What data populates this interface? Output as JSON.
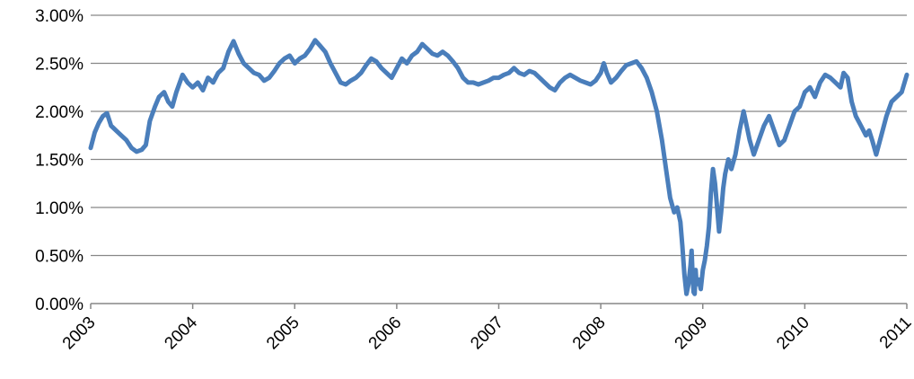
{
  "chart_data": {
    "type": "line",
    "title": "",
    "xlabel": "",
    "ylabel": "",
    "xlim": [
      2003,
      2011
    ],
    "ylim": [
      0,
      3
    ],
    "grid": true,
    "legend": "none",
    "y_ticks": [
      {
        "value": 0.0,
        "label": "0.00%"
      },
      {
        "value": 0.5,
        "label": "0.50%"
      },
      {
        "value": 1.0,
        "label": "1.00%"
      },
      {
        "value": 1.5,
        "label": "1.50%"
      },
      {
        "value": 2.0,
        "label": "2.00%"
      },
      {
        "value": 2.5,
        "label": "2.50%"
      },
      {
        "value": 3.0,
        "label": "3.00%"
      }
    ],
    "x_ticks": [
      {
        "value": 2003,
        "label": "2003"
      },
      {
        "value": 2004,
        "label": "2004"
      },
      {
        "value": 2005,
        "label": "2005"
      },
      {
        "value": 2006,
        "label": "2006"
      },
      {
        "value": 2007,
        "label": "2007"
      },
      {
        "value": 2008,
        "label": "2008"
      },
      {
        "value": 2009,
        "label": "2009"
      },
      {
        "value": 2010,
        "label": "2010"
      },
      {
        "value": 2011,
        "label": "2011"
      }
    ],
    "series": [
      {
        "color": "#4a7ebb",
        "x": [
          2003.0,
          2003.04,
          2003.08,
          2003.12,
          2003.16,
          2003.2,
          2003.25,
          2003.3,
          2003.35,
          2003.4,
          2003.45,
          2003.5,
          2003.54,
          2003.58,
          2003.63,
          2003.67,
          2003.72,
          2003.76,
          2003.8,
          2003.84,
          2003.9,
          2003.95,
          2004.0,
          2004.05,
          2004.1,
          2004.15,
          2004.2,
          2004.25,
          2004.3,
          2004.35,
          2004.4,
          2004.45,
          2004.5,
          2004.55,
          2004.6,
          2004.65,
          2004.7,
          2004.75,
          2004.8,
          2004.85,
          2004.9,
          2004.95,
          2005.0,
          2005.05,
          2005.1,
          2005.15,
          2005.2,
          2005.25,
          2005.3,
          2005.35,
          2005.4,
          2005.45,
          2005.5,
          2005.55,
          2005.6,
          2005.65,
          2005.7,
          2005.75,
          2005.8,
          2005.85,
          2005.9,
          2005.95,
          2006.0,
          2006.05,
          2006.1,
          2006.15,
          2006.2,
          2006.25,
          2006.3,
          2006.35,
          2006.4,
          2006.45,
          2006.5,
          2006.55,
          2006.6,
          2006.65,
          2006.7,
          2006.75,
          2006.8,
          2006.85,
          2006.9,
          2006.95,
          2007.0,
          2007.05,
          2007.1,
          2007.15,
          2007.2,
          2007.25,
          2007.3,
          2007.35,
          2007.4,
          2007.45,
          2007.5,
          2007.55,
          2007.6,
          2007.65,
          2007.7,
          2007.75,
          2007.8,
          2007.85,
          2007.9,
          2007.95,
          2008.0,
          2008.03,
          2008.06,
          2008.1,
          2008.15,
          2008.2,
          2008.25,
          2008.3,
          2008.35,
          2008.4,
          2008.45,
          2008.5,
          2008.55,
          2008.6,
          2008.64,
          2008.68,
          2008.72,
          2008.75,
          2008.78,
          2008.8,
          2008.82,
          2008.84,
          2008.86,
          2008.88,
          2008.89,
          2008.9,
          2008.91,
          2008.92,
          2008.93,
          2008.94,
          2008.96,
          2008.98,
          2009.0,
          2009.02,
          2009.04,
          2009.06,
          2009.08,
          2009.1,
          2009.12,
          2009.14,
          2009.16,
          2009.18,
          2009.2,
          2009.22,
          2009.25,
          2009.28,
          2009.32,
          2009.36,
          2009.4,
          2009.43,
          2009.46,
          2009.5,
          2009.55,
          2009.6,
          2009.65,
          2009.7,
          2009.75,
          2009.8,
          2009.85,
          2009.9,
          2009.95,
          2010.0,
          2010.05,
          2010.1,
          2010.15,
          2010.2,
          2010.25,
          2010.3,
          2010.35,
          2010.38,
          2010.42,
          2010.46,
          2010.5,
          2010.55,
          2010.6,
          2010.63,
          2010.66,
          2010.7,
          2010.75,
          2010.8,
          2010.85,
          2010.9,
          2010.95,
          2011.0
        ],
        "y": [
          1.62,
          1.78,
          1.88,
          1.95,
          1.98,
          1.85,
          1.8,
          1.75,
          1.7,
          1.62,
          1.58,
          1.6,
          1.65,
          1.9,
          2.05,
          2.15,
          2.2,
          2.1,
          2.05,
          2.2,
          2.38,
          2.3,
          2.25,
          2.3,
          2.22,
          2.35,
          2.3,
          2.4,
          2.45,
          2.62,
          2.73,
          2.6,
          2.5,
          2.45,
          2.4,
          2.38,
          2.32,
          2.35,
          2.42,
          2.5,
          2.55,
          2.58,
          2.5,
          2.55,
          2.58,
          2.65,
          2.74,
          2.68,
          2.62,
          2.5,
          2.4,
          2.3,
          2.28,
          2.32,
          2.35,
          2.4,
          2.48,
          2.55,
          2.52,
          2.45,
          2.4,
          2.35,
          2.45,
          2.55,
          2.5,
          2.58,
          2.62,
          2.7,
          2.65,
          2.6,
          2.58,
          2.62,
          2.58,
          2.52,
          2.45,
          2.35,
          2.3,
          2.3,
          2.28,
          2.3,
          2.32,
          2.35,
          2.35,
          2.38,
          2.4,
          2.45,
          2.4,
          2.38,
          2.42,
          2.4,
          2.35,
          2.3,
          2.25,
          2.22,
          2.3,
          2.35,
          2.38,
          2.35,
          2.32,
          2.3,
          2.28,
          2.32,
          2.4,
          2.5,
          2.4,
          2.3,
          2.35,
          2.42,
          2.48,
          2.5,
          2.52,
          2.45,
          2.35,
          2.2,
          2.0,
          1.7,
          1.4,
          1.1,
          0.95,
          1.0,
          0.85,
          0.6,
          0.3,
          0.1,
          0.2,
          0.4,
          0.55,
          0.3,
          0.12,
          0.1,
          0.35,
          0.2,
          0.25,
          0.15,
          0.35,
          0.45,
          0.6,
          0.8,
          1.15,
          1.4,
          1.25,
          1.0,
          0.75,
          0.95,
          1.2,
          1.35,
          1.5,
          1.4,
          1.55,
          1.8,
          2.0,
          1.85,
          1.7,
          1.55,
          1.7,
          1.85,
          1.95,
          1.8,
          1.65,
          1.7,
          1.85,
          2.0,
          2.05,
          2.2,
          2.25,
          2.15,
          2.3,
          2.38,
          2.35,
          2.3,
          2.25,
          2.4,
          2.35,
          2.1,
          1.95,
          1.85,
          1.75,
          1.8,
          1.7,
          1.55,
          1.75,
          1.95,
          2.1,
          2.15,
          2.2,
          2.38
        ]
      }
    ]
  }
}
